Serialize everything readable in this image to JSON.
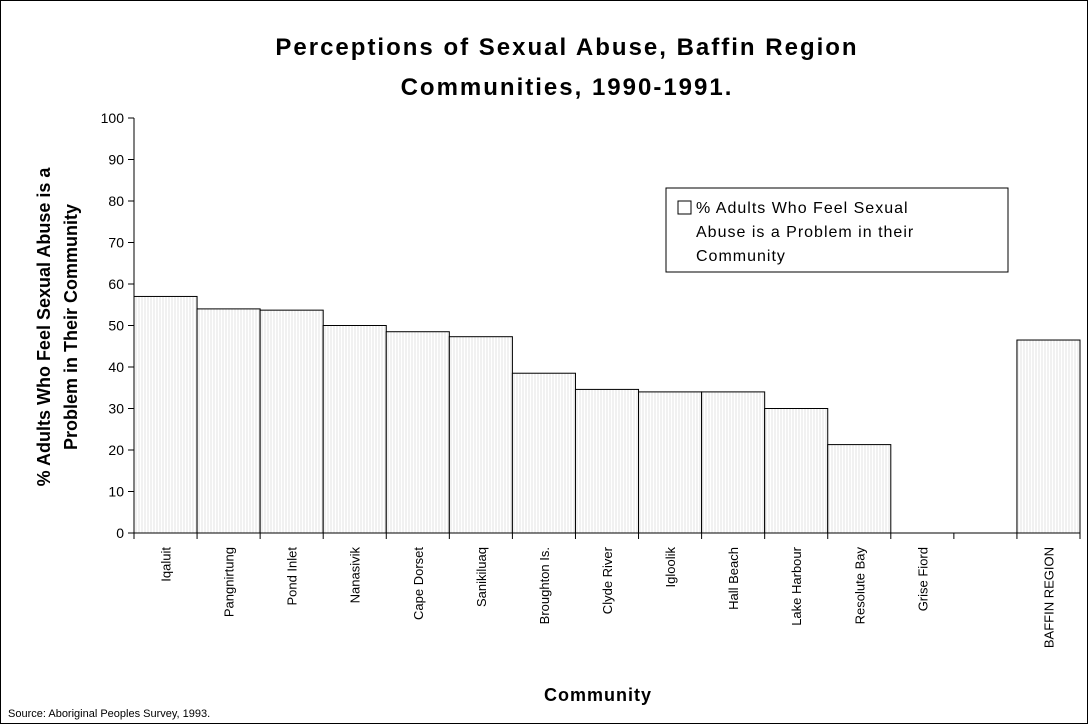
{
  "chart_data": {
    "type": "bar",
    "title_lines": [
      "Perceptions of Sexual Abuse, Baffin Region",
      "Communities, 1990-1991."
    ],
    "ylabel_lines": [
      "% Adults Who Feel Sexual Abuse is a",
      "Problem in Their Community"
    ],
    "xlabel": "Community",
    "ylim": [
      0,
      100
    ],
    "yticks": [
      "0",
      "10",
      "20",
      "30",
      "40",
      "50",
      "60",
      "70",
      "80",
      "90",
      "100"
    ],
    "categories": [
      "Iqaluit",
      "Pangnirtung",
      "Pond Inlet",
      "Nanasivik",
      "Cape Dorset",
      "Sanikiluaq",
      "Broughton Is.",
      "Clyde River",
      "Igloolik",
      "Hall Beach",
      "Lake Harbour",
      "Resolute Bay",
      "Grise Fiord",
      "",
      "BAFFIN REGION"
    ],
    "series": [
      {
        "name_lines": [
          "% Adults Who Feel Sexual",
          "Abuse is a Problem in their",
          "Community"
        ],
        "values": [
          57,
          54,
          53.7,
          50,
          48.5,
          47.3,
          38.5,
          34.6,
          34,
          34,
          30,
          21.3,
          null,
          null,
          46.5
        ]
      }
    ],
    "legend_position": "upper-right",
    "grid": false,
    "bar_color": "#ffffff",
    "edge_color": "#000000"
  },
  "source_note": "Source: Aboriginal Peoples Survey, 1993."
}
